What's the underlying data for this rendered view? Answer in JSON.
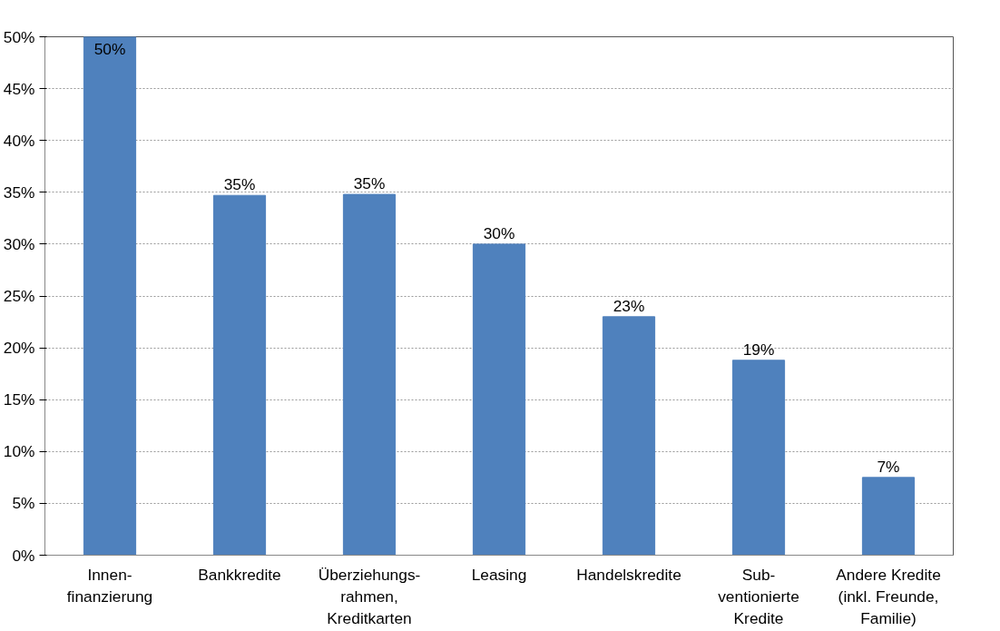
{
  "chart_data": {
    "type": "bar",
    "categories": [
      "Innen-\nfinanzierung",
      "Bankkredite",
      "Überziehungs-\nrahmen,\nKreditkarten",
      "Leasing",
      "Handelskredite",
      "Sub-\nventionierte\nKredite",
      "Andere Kredite\n(inkl. Freunde,\nFamilie)"
    ],
    "values": [
      50,
      34.7,
      34.8,
      30,
      23,
      18.8,
      7.5
    ],
    "value_labels": [
      "50%",
      "35%",
      "35%",
      "30%",
      "23%",
      "19%",
      "7%"
    ],
    "color": "#4f81bd",
    "ylim": [
      0,
      50
    ],
    "yticks": [
      {
        "value": 0,
        "label": "0%"
      },
      {
        "value": 5,
        "label": "5%"
      },
      {
        "value": 10,
        "label": "10%"
      },
      {
        "value": 15,
        "label": "15%"
      },
      {
        "value": 20,
        "label": "20%"
      },
      {
        "value": 25,
        "label": "25%"
      },
      {
        "value": 30,
        "label": "30%"
      },
      {
        "value": 35,
        "label": "35%"
      },
      {
        "value": 40,
        "label": "40%"
      },
      {
        "value": 45,
        "label": "45%"
      },
      {
        "value": 50,
        "label": "50%"
      }
    ],
    "grid": "y",
    "legend": false
  }
}
